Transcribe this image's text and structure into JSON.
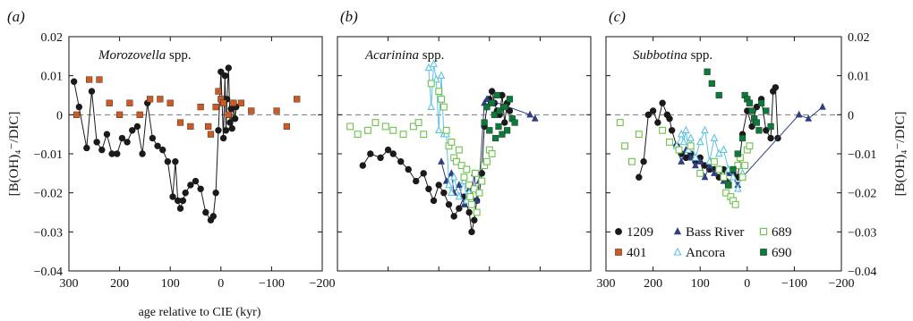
{
  "chart_data": [
    {
      "type": "scatter",
      "panel_label": "(a)",
      "title_genus": "Morozovella",
      "title_suffix": " spp.",
      "xlabel": "age relative to CIE (kyr)",
      "ylabel": "[B(OH)₄⁻/DIC]",
      "xlim": [
        300,
        -200
      ],
      "ylim": [
        -0.04,
        0.02
      ],
      "x_ticks": [
        "300",
        "200",
        "100",
        "0",
        "−100",
        "−200"
      ],
      "y_ticks": [
        "−0.04",
        "−0.03",
        "−0.02",
        "−0.01",
        "0",
        "0.01",
        "0.02"
      ],
      "reference_line_y": 0,
      "series": [
        {
          "name": "1209",
          "marker": "circle-filled",
          "color": "#1a1a1a",
          "connected": true,
          "x": [
            290,
            280,
            265,
            255,
            245,
            235,
            225,
            215,
            205,
            195,
            185,
            175,
            165,
            155,
            145,
            135,
            125,
            115,
            105,
            95,
            90,
            85,
            80,
            75,
            70,
            60,
            50,
            40,
            30,
            20,
            15,
            10,
            5,
            0,
            -5,
            -8,
            -10,
            -12,
            -15,
            -18,
            -20,
            -22,
            -25,
            -28,
            -30
          ],
          "y": [
            0.0085,
            0.002,
            -0.0085,
            0.006,
            -0.007,
            -0.009,
            -0.005,
            -0.01,
            -0.01,
            -0.006,
            -0.007,
            -0.004,
            -0.003,
            -0.01,
            0.003,
            -0.006,
            -0.008,
            -0.009,
            -0.012,
            -0.021,
            -0.012,
            -0.022,
            -0.024,
            -0.022,
            -0.02,
            -0.018,
            -0.017,
            -0.019,
            -0.025,
            -0.027,
            -0.026,
            -0.02,
            -0.004,
            0.011,
            -0.006,
            0.01,
            -0.004,
            0.004,
            0.012,
            -0.002,
            0.0015,
            -0.0035,
            0.003,
            -0.001,
            0.002
          ]
        },
        {
          "name": "401",
          "marker": "square-filled",
          "color": "#cc5a24",
          "connected": false,
          "x": [
            285,
            260,
            240,
            220,
            200,
            180,
            160,
            140,
            120,
            100,
            80,
            60,
            40,
            25,
            20,
            10,
            5,
            0,
            -5,
            -15,
            -25,
            -40,
            -60,
            -110,
            -130,
            -150
          ],
          "y": [
            0.0,
            0.009,
            0.009,
            0.003,
            0.0,
            0.003,
            0.0,
            0.004,
            0.004,
            0.003,
            -0.002,
            -0.003,
            0.002,
            -0.003,
            -0.005,
            0.002,
            0.006,
            0.004,
            0.003,
            0.0,
            0.003,
            0.003,
            0.001,
            0.001,
            -0.003,
            0.004
          ]
        }
      ]
    },
    {
      "type": "scatter",
      "panel_label": "(b)",
      "title_genus": "Acarinina",
      "title_suffix": " spp.",
      "xlim": [
        300,
        -200
      ],
      "ylim": [
        -0.04,
        0.02
      ],
      "reference_line_y": 0,
      "series": [
        {
          "name": "1209",
          "marker": "circle-filled",
          "color": "#1a1a1a",
          "connected": true,
          "x": [
            250,
            235,
            215,
            200,
            190,
            175,
            160,
            145,
            130,
            120,
            110,
            100,
            90,
            80,
            70,
            60,
            50,
            40,
            35,
            30,
            25,
            20,
            15,
            10,
            5,
            0,
            -5,
            -10,
            -15,
            -20,
            -25,
            -30,
            -35,
            -40
          ],
          "y": [
            -0.013,
            -0.01,
            -0.011,
            -0.009,
            -0.01,
            -0.012,
            -0.014,
            -0.017,
            -0.015,
            -0.019,
            -0.022,
            -0.018,
            -0.02,
            -0.023,
            -0.026,
            -0.024,
            -0.021,
            -0.025,
            -0.03,
            -0.027,
            -0.022,
            -0.02,
            -0.015,
            -0.003,
            0.002,
            0.004,
            0.006,
            0.003,
            0.001,
            0.0,
            0.005,
            -0.002,
            0.003,
            0.001
          ]
        },
        {
          "name": "Bass River",
          "marker": "triangle-filled",
          "color": "#2f3f80",
          "connected": true,
          "x": [
            95,
            85,
            75,
            70,
            60,
            50,
            40,
            35,
            30,
            25,
            20,
            10,
            5,
            -80,
            -90
          ],
          "y": [
            -0.012,
            -0.017,
            -0.015,
            -0.02,
            -0.018,
            -0.023,
            -0.019,
            -0.021,
            -0.015,
            -0.022,
            -0.017,
            0.003,
            0.004,
            0.0,
            -0.001
          ]
        },
        {
          "name": "Ancora",
          "marker": "triangle-open",
          "color": "#5fc3e4",
          "connected": true,
          "x": [
            120,
            115,
            110,
            105,
            100,
            95,
            90,
            85,
            80,
            75,
            70,
            60,
            50,
            45,
            40
          ],
          "y": [
            0.012,
            0.002,
            0.013,
            0.009,
            -0.004,
            0.01,
            -0.005,
            -0.005,
            -0.018,
            -0.02,
            -0.016,
            -0.021,
            -0.017,
            -0.022,
            -0.02
          ]
        },
        {
          "name": "689",
          "marker": "square-open",
          "color": "#6cc24a",
          "connected": false,
          "x": [
            275,
            260,
            240,
            225,
            205,
            190,
            170,
            150,
            140,
            130,
            115,
            100,
            95,
            90,
            85,
            80,
            75,
            70,
            65,
            60,
            55,
            50,
            45,
            40,
            38,
            35,
            30,
            28,
            25,
            20,
            15,
            10,
            5,
            0,
            -5
          ],
          "y": [
            -0.003,
            -0.005,
            -0.004,
            -0.002,
            -0.003,
            -0.004,
            -0.005,
            -0.003,
            -0.002,
            -0.005,
            0.008,
            0.006,
            0.004,
            0.002,
            -0.004,
            -0.008,
            -0.007,
            -0.011,
            -0.012,
            -0.009,
            -0.013,
            -0.016,
            -0.014,
            -0.018,
            -0.021,
            -0.023,
            -0.019,
            -0.015,
            -0.025,
            -0.02,
            -0.017,
            -0.013,
            -0.012,
            -0.009,
            -0.01
          ]
        },
        {
          "name": "690",
          "marker": "square-filled",
          "color": "#0b7a3a",
          "connected": false,
          "x": [
            10,
            5,
            0,
            -5,
            -10,
            -12,
            -15,
            -18,
            -20,
            -25,
            -30,
            -35,
            -40,
            -45,
            -50
          ],
          "y": [
            -0.002,
            0.002,
            -0.004,
            0.003,
            0.0,
            -0.006,
            0.005,
            -0.003,
            0.001,
            -0.005,
            0.002,
            -0.004,
            0.004,
            -0.001,
            -0.002
          ]
        }
      ]
    },
    {
      "type": "scatter",
      "panel_label": "(c)",
      "title_genus": "Subbotina",
      "title_suffix": " spp.",
      "xlabel": "",
      "ylabel": "[B(OH)₄⁻/DIC]",
      "xlim": [
        300,
        -200
      ],
      "ylim": [
        -0.04,
        0.02
      ],
      "x_ticks": [
        "300",
        "200",
        "100",
        "0",
        "−100",
        "−200"
      ],
      "y_ticks": [
        "−0.04",
        "−0.03",
        "−0.02",
        "−0.01",
        "0",
        "0.01",
        "0.02"
      ],
      "reference_line_y": 0,
      "series": [
        {
          "name": "1209",
          "marker": "circle-filled",
          "color": "#1a1a1a",
          "connected": true,
          "x": [
            230,
            220,
            210,
            200,
            190,
            180,
            170,
            165,
            160,
            150,
            140,
            130,
            120,
            110,
            100,
            90,
            80,
            70,
            60,
            50,
            45,
            40,
            30,
            20,
            10,
            0,
            -10,
            -20,
            -30,
            -40,
            -50,
            -55,
            -60,
            -65
          ],
          "y": [
            -0.016,
            -0.012,
            0.0,
            0.001,
            -0.002,
            0.003,
            0.0,
            -0.001,
            -0.004,
            -0.008,
            -0.01,
            -0.011,
            -0.01,
            -0.012,
            -0.011,
            -0.013,
            -0.014,
            -0.014,
            -0.016,
            -0.014,
            -0.017,
            -0.018,
            -0.015,
            -0.016,
            -0.005,
            0.001,
            -0.003,
            0.002,
            0.004,
            -0.004,
            -0.006,
            0.006,
            0.007,
            -0.006
          ]
        },
        {
          "name": "Bass River",
          "marker": "triangle-filled",
          "color": "#2f3f80",
          "connected": true,
          "x": [
            150,
            140,
            130,
            120,
            110,
            100,
            90,
            80,
            70,
            60,
            50,
            40,
            30,
            20,
            10,
            -110,
            -130,
            -160
          ],
          "y": [
            -0.008,
            -0.012,
            -0.009,
            -0.011,
            -0.013,
            -0.012,
            -0.016,
            -0.013,
            -0.015,
            -0.014,
            -0.017,
            -0.015,
            -0.016,
            -0.018,
            -0.016,
            0.0,
            -0.001,
            0.002
          ]
        },
        {
          "name": "Ancora",
          "marker": "triangle-open",
          "color": "#5fc3e4",
          "connected": true,
          "x": [
            150,
            140,
            135,
            130,
            125,
            120,
            110,
            100,
            90,
            80,
            70,
            60,
            50,
            40,
            30,
            20,
            10
          ],
          "y": [
            -0.008,
            -0.005,
            -0.007,
            -0.004,
            -0.009,
            -0.006,
            -0.011,
            -0.007,
            -0.004,
            -0.012,
            -0.006,
            -0.01,
            -0.009,
            -0.014,
            -0.016,
            -0.019,
            -0.015
          ]
        },
        {
          "name": "689",
          "marker": "square-open",
          "color": "#6cc24a",
          "connected": false,
          "x": [
            270,
            260,
            245,
            230,
            180,
            165,
            145,
            120,
            100,
            70,
            60,
            50,
            45,
            40,
            35,
            30,
            25,
            20,
            15,
            10,
            5,
            0,
            -5
          ],
          "y": [
            -0.002,
            -0.008,
            -0.012,
            -0.005,
            -0.004,
            -0.007,
            -0.009,
            -0.008,
            -0.015,
            -0.012,
            -0.014,
            -0.016,
            -0.02,
            -0.018,
            -0.021,
            -0.022,
            -0.023,
            -0.013,
            -0.011,
            -0.016,
            -0.013,
            -0.009,
            -0.008
          ]
        },
        {
          "name": "690",
          "marker": "square-filled",
          "color": "#0b7a3a",
          "connected": false,
          "x": [
            85,
            75,
            60,
            40,
            30,
            20,
            10,
            5,
            0,
            -5,
            -10,
            -15,
            -20,
            -25,
            -30,
            -40,
            -50
          ],
          "y": [
            0.011,
            0.008,
            0.005,
            -0.018,
            -0.014,
            -0.01,
            -0.006,
            0.005,
            0.004,
            0.003,
            0.001,
            -0.001,
            -0.002,
            -0.004,
            0.003,
            0.001,
            -0.003
          ]
        }
      ],
      "legend": {
        "placement": "lower-left",
        "entries": [
          {
            "label": "1209",
            "marker": "circle-filled",
            "color": "#1a1a1a"
          },
          {
            "label": "Bass River",
            "marker": "triangle-filled",
            "color": "#2f3f80"
          },
          {
            "label": "689",
            "marker": "square-open",
            "color": "#6cc24a"
          },
          {
            "label": "401",
            "marker": "square-filled",
            "color": "#cc5a24"
          },
          {
            "label": "Ancora",
            "marker": "triangle-open",
            "color": "#5fc3e4"
          },
          {
            "label": "690",
            "marker": "square-filled",
            "color": "#0b7a3a"
          }
        ]
      }
    }
  ]
}
